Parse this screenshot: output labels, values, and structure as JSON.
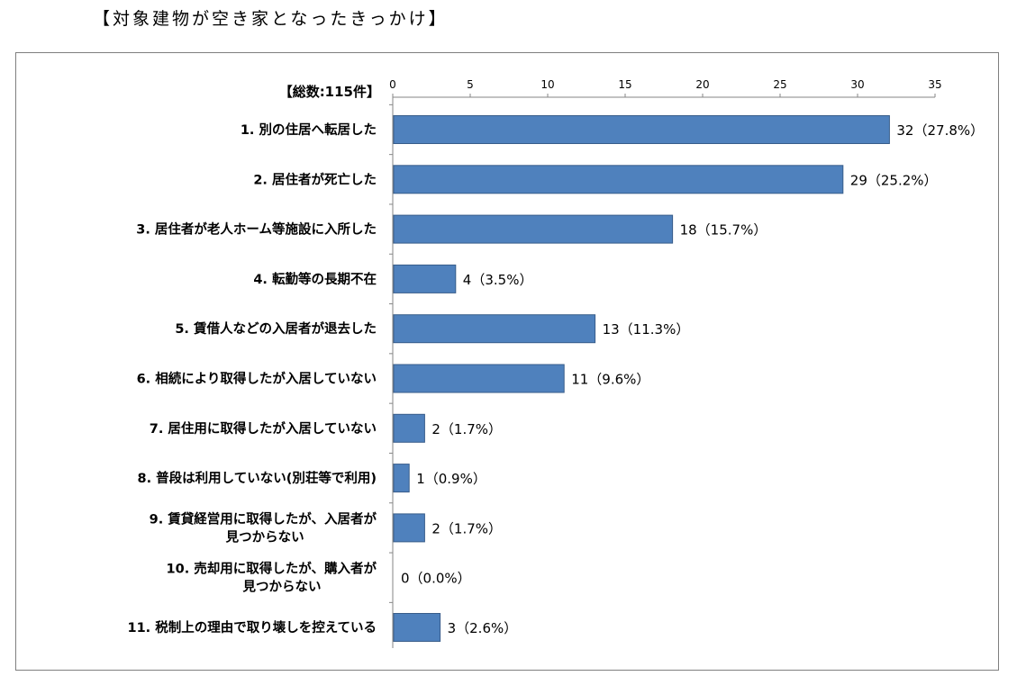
{
  "title": "【対象建物が空き家となったきっかけ】",
  "chart_data": {
    "type": "bar",
    "orientation": "horizontal",
    "total_label": "【総数:115件】",
    "xlim": [
      0,
      35
    ],
    "x_ticks": [
      "0",
      "5",
      "10",
      "15",
      "20",
      "25",
      "30",
      "35"
    ],
    "grid": false,
    "bar_color": "#4f81bd",
    "categories": [
      [
        "1. 別の住居へ転居した"
      ],
      [
        "2. 居住者が死亡した"
      ],
      [
        "3. 居住者が老人ホーム等施設に入所した"
      ],
      [
        "4. 転勤等の長期不在"
      ],
      [
        "5. 賃借人などの入居者が退去した"
      ],
      [
        "6. 相続により取得したが入居していない"
      ],
      [
        "7. 居住用に取得したが入居していない"
      ],
      [
        "8. 普段は利用していない(別荘等で利用)"
      ],
      [
        "9. 賃貸経営用に取得したが、入居者が",
        "見つからない"
      ],
      [
        "10. 売却用に取得したが、購入者が",
        "見つからない"
      ],
      [
        "11. 税制上の理由で取り壊しを控えている"
      ]
    ],
    "values": [
      32,
      29,
      18,
      4,
      13,
      11,
      2,
      1,
      2,
      0,
      3
    ],
    "data_labels": [
      "32（27.8%）",
      "29（25.2%）",
      "18（15.7%）",
      "4（3.5%）",
      "13（11.3%）",
      "11（9.6%）",
      "2（1.7%）",
      "1（0.9%）",
      "2（1.7%）",
      "0（0.0%）",
      "3（2.6%）"
    ]
  }
}
